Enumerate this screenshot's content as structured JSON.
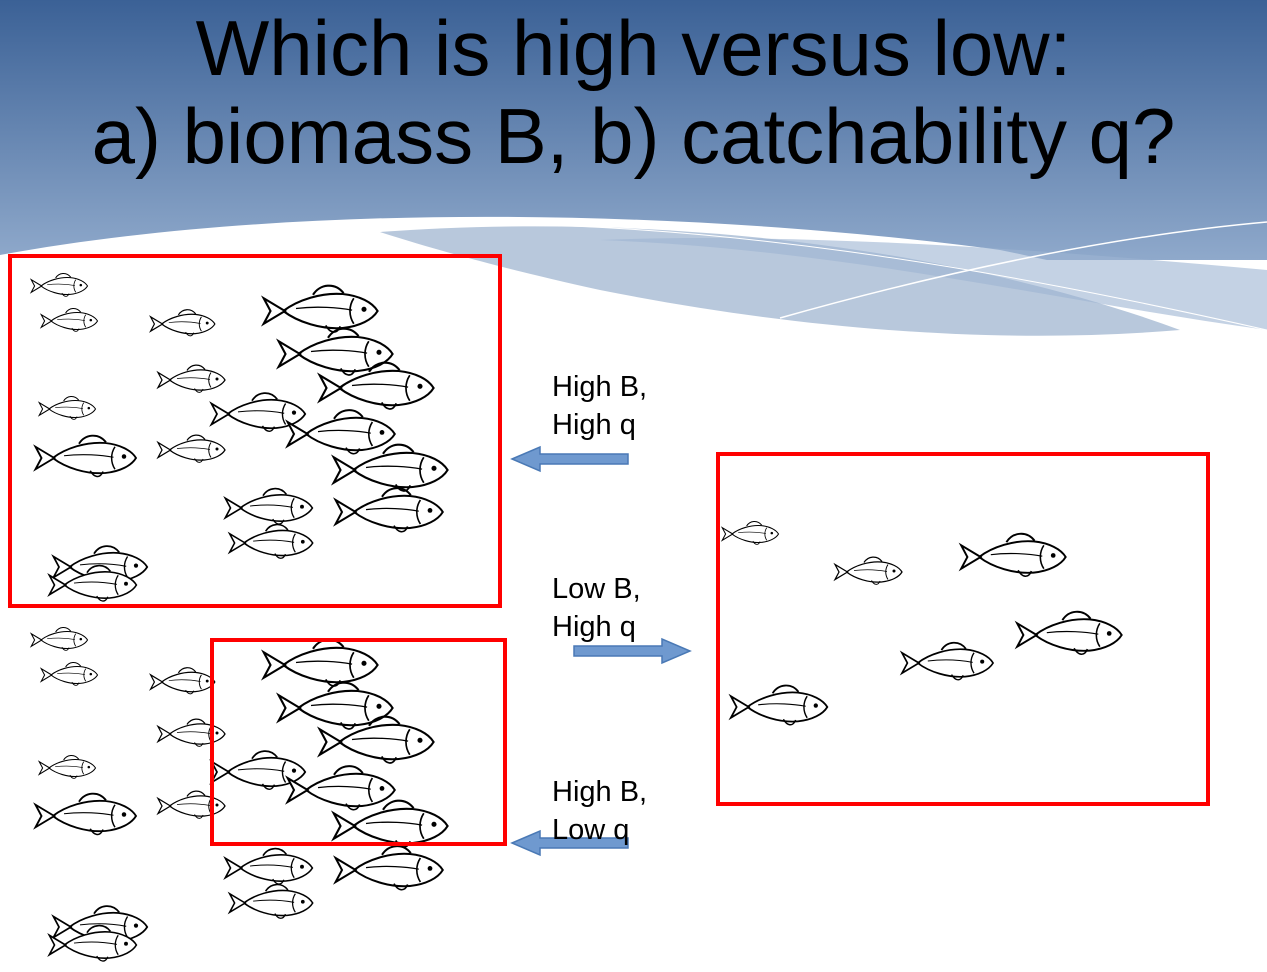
{
  "slide": {
    "title_line1": "Which is high versus low:",
    "title_line2": "a) biomass B, b) catchability q?"
  },
  "labels": {
    "top": {
      "line1": "High B,",
      "line2": "High q"
    },
    "middle": {
      "line1": "Low B,",
      "line2": "High q"
    },
    "bottom": {
      "line1": "High B,",
      "line2": "Low q"
    }
  },
  "colors": {
    "header_dark": "#3b6196",
    "header_light": "#8fa9cb",
    "box_stroke": "#ff0000",
    "arrow_fill": "#6f99cf",
    "arrow_stroke": "#4a79b5"
  },
  "icons": [
    "fish-icon",
    "arrow-left-icon",
    "arrow-right-icon"
  ]
}
